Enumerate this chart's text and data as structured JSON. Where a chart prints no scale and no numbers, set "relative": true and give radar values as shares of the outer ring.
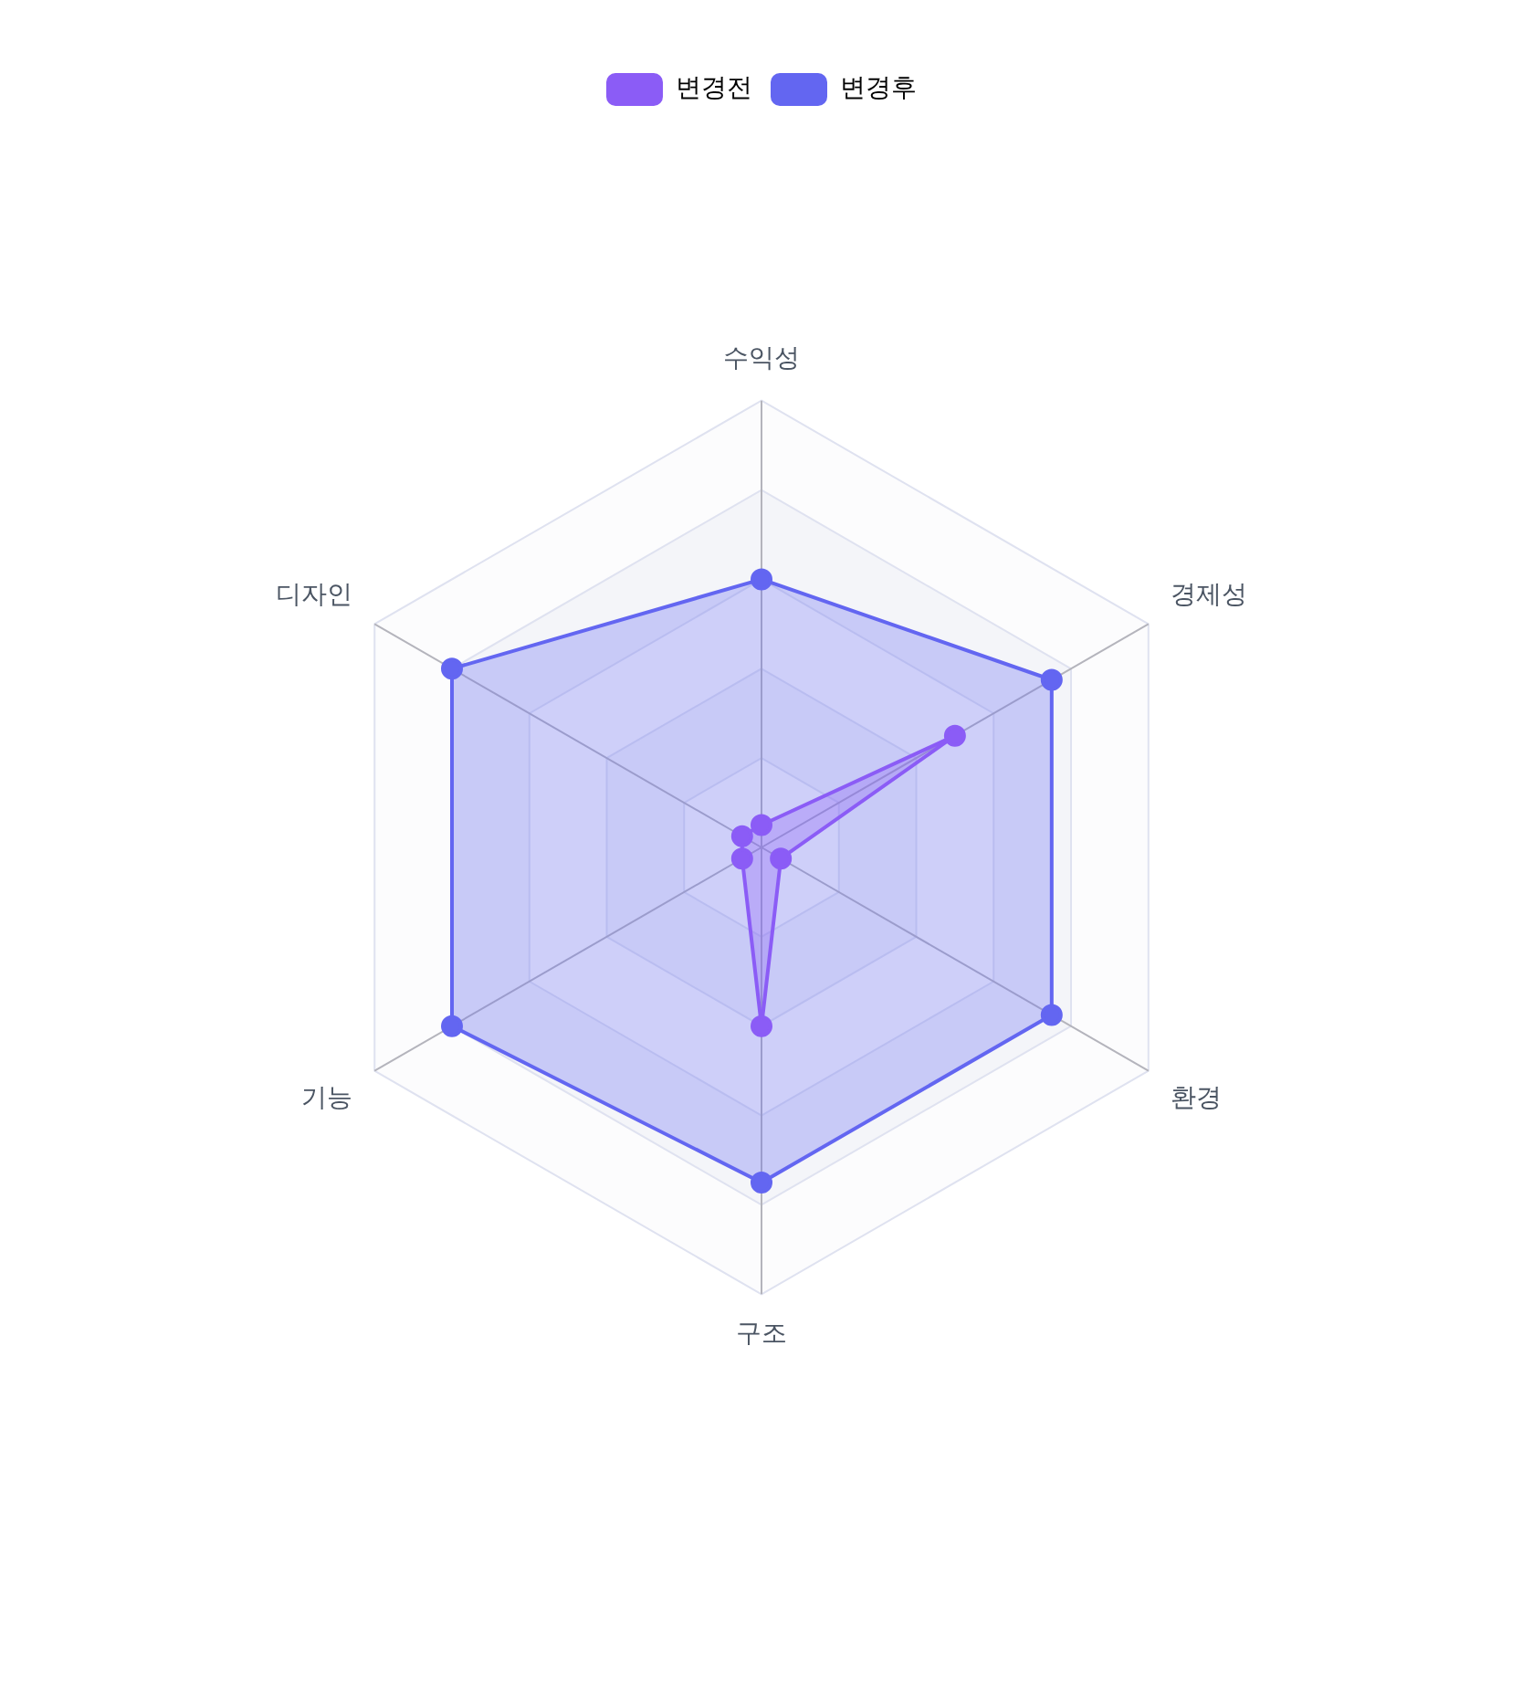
{
  "chart_data": {
    "type": "radar",
    "categories": [
      "수익성",
      "경제성",
      "환경",
      "구조",
      "기능",
      "디자인"
    ],
    "relative": true,
    "series": [
      {
        "name": "변경전",
        "color": "#8b5cf6",
        "values": [
          0.05,
          0.5,
          0.05,
          0.4,
          0.05,
          0.05
        ]
      },
      {
        "name": "변경후",
        "color": "#6366f1",
        "values": [
          0.6,
          0.75,
          0.75,
          0.75,
          0.8,
          0.8
        ]
      }
    ],
    "legend": "top",
    "grid": true,
    "marker": "circle"
  }
}
